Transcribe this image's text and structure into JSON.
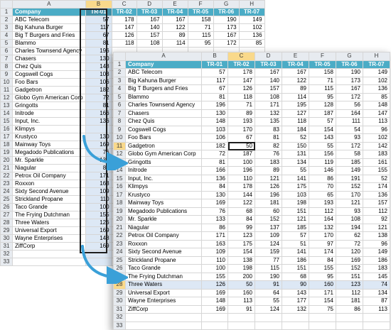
{
  "sheet_back": {
    "columns": [
      "A",
      "B",
      "C",
      "D",
      "E",
      "F",
      "G",
      "H"
    ],
    "selected_column": "B",
    "header": [
      "Company",
      "TR-01",
      "TR-02",
      "TR-03",
      "TR-04",
      "TR-05",
      "TR-06",
      "TR-07"
    ],
    "rows": [
      {
        "n": "2",
        "company": "ABC Telecom",
        "vals": [
          "57",
          "178",
          "167",
          "167",
          "158",
          "190",
          "149"
        ]
      },
      {
        "n": "3",
        "company": "Big Kahuna Burger",
        "vals": [
          "117",
          "147",
          "140",
          "122",
          "71",
          "173",
          "102"
        ]
      },
      {
        "n": "4",
        "company": "Big T Burgers and Fries",
        "vals": [
          "67",
          "126",
          "157",
          "89",
          "115",
          "167",
          "136"
        ]
      },
      {
        "n": "5",
        "company": "Blammo",
        "vals": [
          "81",
          "118",
          "108",
          "114",
          "95",
          "172",
          "85"
        ]
      },
      {
        "n": "6",
        "company": "Charles Townsend Agency",
        "vals": [
          "196",
          "",
          "",
          "",
          "",
          "",
          ""
        ]
      },
      {
        "n": "7",
        "company": "Chasers",
        "vals": [
          "130",
          "",
          "",
          "",
          "",
          "",
          ""
        ]
      },
      {
        "n": "8",
        "company": "Chez Quis",
        "vals": [
          "148",
          "",
          "",
          "",
          "",
          "",
          ""
        ]
      },
      {
        "n": "9",
        "company": "Cogswell Cogs",
        "vals": [
          "103",
          "",
          "",
          "",
          "",
          "",
          ""
        ]
      },
      {
        "n": "10",
        "company": "Foo Bars",
        "vals": [
          "106",
          "",
          "",
          "",
          "",
          "",
          ""
        ]
      },
      {
        "n": "11",
        "company": "Gadgetron",
        "vals": [
          "182",
          "",
          "",
          "",
          "",
          "",
          ""
        ]
      },
      {
        "n": "12",
        "company": "Globo Gym American Corp",
        "vals": [
          "72",
          "",
          "",
          "",
          "",
          "",
          ""
        ]
      },
      {
        "n": "13",
        "company": "Gringotts",
        "vals": [
          "81",
          "",
          "",
          "",
          "",
          "",
          ""
        ]
      },
      {
        "n": "14",
        "company": "Initrode",
        "vals": [
          "166",
          "",
          "",
          "",
          "",
          "",
          ""
        ]
      },
      {
        "n": "15",
        "company": "Input, Inc.",
        "vals": [
          "136",
          "",
          "",
          "",
          "",
          "",
          ""
        ]
      },
      {
        "n": "16",
        "company": "Klimpys",
        "vals": [
          "",
          "",
          "",
          "",
          "",
          "",
          ""
        ]
      },
      {
        "n": "17",
        "company": "Krustyco",
        "vals": [
          "130",
          "",
          "",
          "",
          "",
          "",
          ""
        ]
      },
      {
        "n": "18",
        "company": "Mainway Toys",
        "vals": [
          "169",
          "",
          "",
          "",
          "",
          "",
          ""
        ]
      },
      {
        "n": "19",
        "company": "Megadodo Publications",
        "vals": [
          "76",
          "",
          "",
          "",
          "",
          "",
          ""
        ]
      },
      {
        "n": "20",
        "company": "Mr. Sparkle",
        "vals": [
          "133",
          "",
          "",
          "",
          "",
          "",
          ""
        ]
      },
      {
        "n": "21",
        "company": "Niagular",
        "vals": [
          "86",
          "",
          "",
          "",
          "",
          "",
          ""
        ]
      },
      {
        "n": "22",
        "company": "Petrox Oil Company",
        "vals": [
          "171",
          "",
          "",
          "",
          "",
          "",
          ""
        ]
      },
      {
        "n": "23",
        "company": "Roxxon",
        "vals": [
          "163",
          "",
          "",
          "",
          "",
          "",
          ""
        ]
      },
      {
        "n": "24",
        "company": "Sixty Second Avenue",
        "vals": [
          "109",
          "",
          "",
          "",
          "",
          "",
          ""
        ]
      },
      {
        "n": "25",
        "company": "Strickland Propane",
        "vals": [
          "110",
          "",
          "",
          "",
          "",
          "",
          ""
        ]
      },
      {
        "n": "26",
        "company": "Taco Grande",
        "vals": [
          "100",
          "",
          "",
          "",
          "",
          "",
          ""
        ]
      },
      {
        "n": "27",
        "company": "The Frying Dutchman",
        "vals": [
          "155",
          "",
          "",
          "",
          "",
          "",
          ""
        ]
      },
      {
        "n": "28",
        "company": "Three Waters",
        "vals": [
          "126",
          "",
          "",
          "",
          "",
          "",
          ""
        ]
      },
      {
        "n": "29",
        "company": "Universal Export",
        "vals": [
          "169",
          "",
          "",
          "",
          "",
          "",
          ""
        ]
      },
      {
        "n": "30",
        "company": "Wayne Enterprises",
        "vals": [
          "148",
          "",
          "",
          "",
          "",
          "",
          ""
        ]
      },
      {
        "n": "31",
        "company": "ZiffCorp",
        "vals": [
          "169",
          "",
          "",
          "",
          "",
          "",
          ""
        ]
      },
      {
        "n": "32",
        "company": "",
        "vals": [
          "",
          "",
          "",
          "",
          "",
          "",
          ""
        ]
      },
      {
        "n": "33",
        "company": "",
        "vals": [
          "",
          "",
          "",
          "",
          "",
          "",
          ""
        ]
      }
    ]
  },
  "sheet_front": {
    "columns": [
      "A",
      "B",
      "C",
      "D",
      "E",
      "F",
      "G",
      "H"
    ],
    "selected_column": "C",
    "header": [
      "Company",
      "TR-01",
      "TR-02",
      "TR-03",
      "TR-04",
      "TR-05",
      "TR-06",
      "TR-07"
    ],
    "active_row": "11",
    "highlight_row": "28",
    "rows": [
      {
        "n": "2",
        "company": "ABC Telecom",
        "vals": [
          "57",
          "178",
          "167",
          "167",
          "158",
          "190",
          "149"
        ]
      },
      {
        "n": "3",
        "company": "Big Kahuna Burger",
        "vals": [
          "117",
          "147",
          "140",
          "122",
          "71",
          "173",
          "102"
        ]
      },
      {
        "n": "4",
        "company": "Big T Burgers and Fries",
        "vals": [
          "67",
          "126",
          "157",
          "89",
          "115",
          "167",
          "136"
        ]
      },
      {
        "n": "5",
        "company": "Blammo",
        "vals": [
          "81",
          "118",
          "108",
          "114",
          "95",
          "172",
          "85"
        ]
      },
      {
        "n": "6",
        "company": "Charles Townsend Agency",
        "vals": [
          "196",
          "71",
          "171",
          "195",
          "128",
          "56",
          "148"
        ]
      },
      {
        "n": "7",
        "company": "Chasers",
        "vals": [
          "130",
          "89",
          "132",
          "127",
          "187",
          "164",
          "147"
        ]
      },
      {
        "n": "8",
        "company": "Chez Quis",
        "vals": [
          "148",
          "193",
          "135",
          "118",
          "57",
          "111",
          "113"
        ]
      },
      {
        "n": "9",
        "company": "Cogswell Cogs",
        "vals": [
          "103",
          "170",
          "83",
          "184",
          "154",
          "54",
          "96"
        ]
      },
      {
        "n": "10",
        "company": "Foo Bars",
        "vals": [
          "106",
          "67",
          "81",
          "52",
          "143",
          "93",
          "102"
        ]
      },
      {
        "n": "11",
        "company": "Gadgetron",
        "vals": [
          "182",
          "50",
          "82",
          "150",
          "55",
          "172",
          "142"
        ]
      },
      {
        "n": "12",
        "company": "Globo Gym American Corp",
        "vals": [
          "72",
          "187",
          "76",
          "131",
          "156",
          "58",
          "183"
        ]
      },
      {
        "n": "13",
        "company": "Gringotts",
        "vals": [
          "81",
          "100",
          "183",
          "134",
          "119",
          "185",
          "161"
        ]
      },
      {
        "n": "14",
        "company": "Initrode",
        "vals": [
          "166",
          "196",
          "89",
          "55",
          "146",
          "149",
          "155"
        ]
      },
      {
        "n": "15",
        "company": "Input, Inc.",
        "vals": [
          "136",
          "110",
          "121",
          "141",
          "86",
          "191",
          "52"
        ]
      },
      {
        "n": "16",
        "company": "Klimpys",
        "vals": [
          "84",
          "178",
          "126",
          "175",
          "70",
          "152",
          "174"
        ]
      },
      {
        "n": "17",
        "company": "Krustyco",
        "vals": [
          "130",
          "144",
          "196",
          "103",
          "65",
          "170",
          "136"
        ]
      },
      {
        "n": "18",
        "company": "Mainway Toys",
        "vals": [
          "169",
          "122",
          "181",
          "198",
          "193",
          "121",
          "157"
        ]
      },
      {
        "n": "19",
        "company": "Megadodo Publications",
        "vals": [
          "76",
          "68",
          "60",
          "151",
          "112",
          "93",
          "112"
        ]
      },
      {
        "n": "20",
        "company": "Mr. Sparkle",
        "vals": [
          "133",
          "84",
          "152",
          "121",
          "164",
          "108",
          "92"
        ]
      },
      {
        "n": "21",
        "company": "Niagular",
        "vals": [
          "86",
          "99",
          "137",
          "185",
          "132",
          "194",
          "121"
        ]
      },
      {
        "n": "22",
        "company": "Petrox Oil Company",
        "vals": [
          "171",
          "123",
          "109",
          "57",
          "170",
          "62",
          "138"
        ]
      },
      {
        "n": "23",
        "company": "Roxxon",
        "vals": [
          "163",
          "175",
          "124",
          "51",
          "97",
          "72",
          "96"
        ]
      },
      {
        "n": "24",
        "company": "Sixty Second Avenue",
        "vals": [
          "109",
          "154",
          "159",
          "141",
          "174",
          "120",
          "149"
        ]
      },
      {
        "n": "25",
        "company": "Strickland Propane",
        "vals": [
          "110",
          "138",
          "77",
          "186",
          "84",
          "169",
          "186"
        ]
      },
      {
        "n": "26",
        "company": "Taco Grande",
        "vals": [
          "100",
          "198",
          "115",
          "151",
          "155",
          "152",
          "183"
        ]
      },
      {
        "n": "27",
        "company": "The Frying Dutchman",
        "vals": [
          "155",
          "200",
          "190",
          "68",
          "95",
          "151",
          "145"
        ]
      },
      {
        "n": "28",
        "company": "Three Waters",
        "vals": [
          "126",
          "50",
          "91",
          "90",
          "160",
          "123",
          "74"
        ]
      },
      {
        "n": "29",
        "company": "Universal Export",
        "vals": [
          "169",
          "160",
          "64",
          "143",
          "171",
          "112",
          "134"
        ]
      },
      {
        "n": "30",
        "company": "Wayne Enterprises",
        "vals": [
          "148",
          "113",
          "55",
          "177",
          "154",
          "181",
          "87"
        ]
      },
      {
        "n": "31",
        "company": "ZiffCorp",
        "vals": [
          "169",
          "91",
          "124",
          "132",
          "75",
          "86",
          "113"
        ]
      },
      {
        "n": "32",
        "company": "",
        "vals": [
          "",
          "",
          "",
          "",
          "",
          "",
          ""
        ]
      },
      {
        "n": "33",
        "company": "",
        "vals": [
          "",
          "",
          "",
          "",
          "",
          "",
          ""
        ]
      }
    ]
  },
  "colors": {
    "header_fill": "#4bacc6",
    "selection_fill": "#dde8f5",
    "arrow": "#3aa0d8"
  },
  "icons": [
    "curved-arrow-icon"
  ]
}
